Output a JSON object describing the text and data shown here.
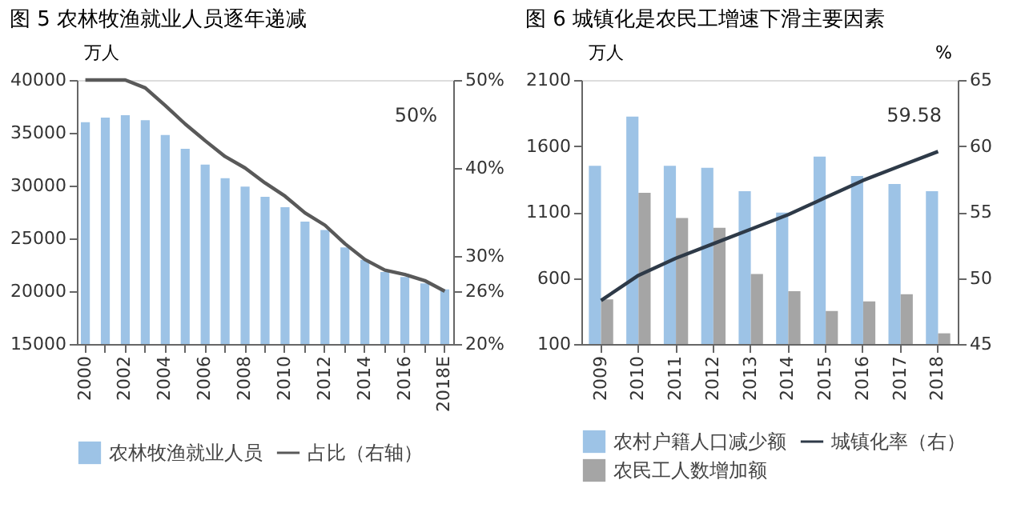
{
  "chart_data": [
    {
      "type": "bar",
      "title": "图 5  农林牧渔就业人员逐年递减",
      "ylabel": "万人",
      "categories": [
        "2000",
        null,
        "2002",
        null,
        "2004",
        null,
        "2006",
        null,
        "2008",
        null,
        "2010",
        null,
        "2012",
        null,
        "2014",
        null,
        "2016",
        null,
        "2018E"
      ],
      "series": [
        {
          "name": "农林牧渔就业人员",
          "color": "#9dc3e6",
          "values": [
            36000,
            36440,
            36670,
            36200,
            34800,
            33480,
            31980,
            30710,
            29910,
            28930,
            27950,
            26590,
            25790,
            24150,
            22980,
            21810,
            21340,
            20730,
            20170
          ]
        },
        {
          "name": "占比（右轴）",
          "type": "line",
          "axis": "y2",
          "color": "#595959",
          "values": [
            50,
            50,
            50,
            49.1,
            47.1,
            45.0,
            43.1,
            41.3,
            40.0,
            38.3,
            36.8,
            34.9,
            33.5,
            31.4,
            29.6,
            28.4,
            27.9,
            27.2,
            26
          ]
        }
      ],
      "ylim": [
        15000,
        40000
      ],
      "yticks": [
        15000,
        20000,
        25000,
        30000,
        35000,
        40000
      ],
      "y2lim": [
        20,
        50
      ],
      "y2ticks": [
        {
          "value": 20,
          "label": "20%"
        },
        {
          "value": 26,
          "label": "26%"
        },
        {
          "value": 30,
          "label": "30%"
        },
        {
          "value": 40,
          "label": "40%"
        },
        {
          "value": 50,
          "label": "50%"
        }
      ],
      "annotations": [
        "50%"
      ],
      "legend": "bottom"
    },
    {
      "type": "bar",
      "title": "图 6  城镇化是农民工增速下滑主要因素",
      "ylabel": "万人",
      "y2label": "%",
      "categories": [
        "2009",
        "2010",
        "2011",
        "2012",
        "2013",
        "2014",
        "2015",
        "2016",
        "2017",
        "2018"
      ],
      "series": [
        {
          "name": "农村户籍人口减少额",
          "color": "#9dc3e6",
          "values": [
            1450,
            1823,
            1450,
            1435,
            1258,
            1096,
            1519,
            1373,
            1312,
            1258
          ]
        },
        {
          "name": "农民工人数增加额",
          "color": "#a5a5a5",
          "values": [
            438,
            1246,
            1054,
            981,
            631,
            500,
            350,
            423,
            477,
            181
          ]
        },
        {
          "name": "城镇化率（右）",
          "type": "line",
          "axis": "y2",
          "color": "#2e3a48",
          "values": [
            48.3,
            50.2,
            51.5,
            52.6,
            53.7,
            54.8,
            56.1,
            57.4,
            58.5,
            59.58
          ]
        }
      ],
      "ylim": [
        100,
        2100
      ],
      "yticks": [
        100,
        600,
        1100,
        1600,
        2100
      ],
      "y2lim": [
        45,
        65
      ],
      "y2ticks": [
        45,
        50,
        55,
        60,
        65
      ],
      "annotations": [
        "59.58"
      ],
      "legend": "bottom"
    }
  ]
}
